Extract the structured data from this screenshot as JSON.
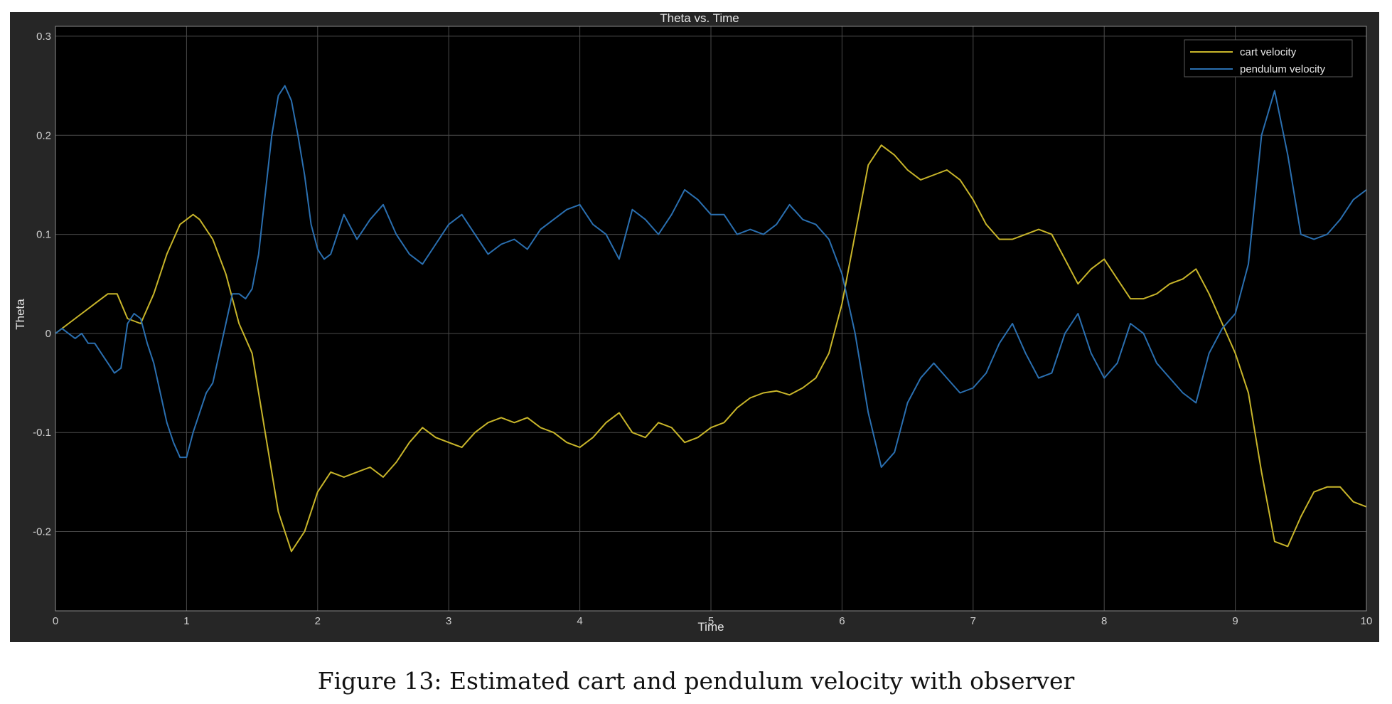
{
  "caption": "Figure 13: Estimated cart and pendulum velocity with observer",
  "chart_data": {
    "type": "line",
    "title": "Theta vs. Time",
    "xlabel": "Time",
    "ylabel": "Theta",
    "xlim": [
      0,
      10
    ],
    "ylim": [
      -0.28,
      0.31
    ],
    "xticks": [
      0,
      1,
      2,
      3,
      4,
      5,
      6,
      7,
      8,
      9,
      10
    ],
    "yticks": [
      -0.2,
      -0.1,
      0,
      0.1,
      0.2,
      0.3
    ],
    "ytick_labels": [
      "-0.2",
      "-0.1",
      "0",
      "0.1",
      "0.2",
      "0.3"
    ],
    "grid": true,
    "legend_position": "top-right",
    "background": "#000000",
    "series": [
      {
        "name": "cart velocity",
        "color": "#c8b52a",
        "x": [
          0,
          0.1,
          0.2,
          0.3,
          0.4,
          0.47,
          0.55,
          0.65,
          0.75,
          0.85,
          0.95,
          1.05,
          1.1,
          1.2,
          1.3,
          1.4,
          1.5,
          1.6,
          1.7,
          1.8,
          1.9,
          2.0,
          2.1,
          2.2,
          2.3,
          2.4,
          2.5,
          2.6,
          2.7,
          2.8,
          2.9,
          3.0,
          3.1,
          3.2,
          3.3,
          3.4,
          3.5,
          3.6,
          3.7,
          3.8,
          3.9,
          4.0,
          4.1,
          4.2,
          4.3,
          4.4,
          4.5,
          4.6,
          4.7,
          4.8,
          4.9,
          5.0,
          5.1,
          5.2,
          5.3,
          5.4,
          5.5,
          5.6,
          5.7,
          5.8,
          5.9,
          6.0,
          6.1,
          6.2,
          6.3,
          6.4,
          6.5,
          6.6,
          6.7,
          6.8,
          6.9,
          7.0,
          7.1,
          7.2,
          7.3,
          7.4,
          7.5,
          7.6,
          7.7,
          7.8,
          7.9,
          8.0,
          8.1,
          8.2,
          8.3,
          8.4,
          8.5,
          8.6,
          8.7,
          8.8,
          8.9,
          9.0,
          9.1,
          9.2,
          9.3,
          9.4,
          9.5,
          9.6,
          9.7,
          9.8,
          9.9,
          10.0
        ],
        "y": [
          0.0,
          0.01,
          0.02,
          0.03,
          0.04,
          0.04,
          0.015,
          0.01,
          0.04,
          0.08,
          0.11,
          0.12,
          0.115,
          0.095,
          0.06,
          0.01,
          -0.02,
          -0.1,
          -0.18,
          -0.22,
          -0.2,
          -0.16,
          -0.14,
          -0.145,
          -0.14,
          -0.135,
          -0.145,
          -0.13,
          -0.11,
          -0.095,
          -0.105,
          -0.11,
          -0.115,
          -0.1,
          -0.09,
          -0.085,
          -0.09,
          -0.085,
          -0.095,
          -0.1,
          -0.11,
          -0.115,
          -0.105,
          -0.09,
          -0.08,
          -0.1,
          -0.105,
          -0.09,
          -0.095,
          -0.11,
          -0.105,
          -0.095,
          -0.09,
          -0.075,
          -0.065,
          -0.06,
          -0.058,
          -0.062,
          -0.055,
          -0.045,
          -0.02,
          0.03,
          0.1,
          0.17,
          0.19,
          0.18,
          0.165,
          0.155,
          0.16,
          0.165,
          0.155,
          0.135,
          0.11,
          0.095,
          0.095,
          0.1,
          0.105,
          0.1,
          0.075,
          0.05,
          0.065,
          0.075,
          0.055,
          0.035,
          0.035,
          0.04,
          0.05,
          0.055,
          0.065,
          0.04,
          0.01,
          -0.02,
          -0.06,
          -0.14,
          -0.21,
          -0.215,
          -0.185,
          -0.16,
          -0.155,
          -0.155,
          -0.17,
          -0.175
        ]
      },
      {
        "name": "pendulum velocity",
        "color": "#2a6fb0",
        "x": [
          0,
          0.05,
          0.1,
          0.15,
          0.2,
          0.25,
          0.3,
          0.35,
          0.4,
          0.45,
          0.5,
          0.55,
          0.6,
          0.65,
          0.7,
          0.75,
          0.8,
          0.85,
          0.9,
          0.95,
          1.0,
          1.05,
          1.1,
          1.15,
          1.2,
          1.3,
          1.35,
          1.4,
          1.45,
          1.5,
          1.55,
          1.6,
          1.65,
          1.7,
          1.75,
          1.8,
          1.85,
          1.9,
          1.95,
          2.0,
          2.05,
          2.1,
          2.15,
          2.2,
          2.3,
          2.4,
          2.5,
          2.6,
          2.7,
          2.8,
          2.9,
          3.0,
          3.1,
          3.2,
          3.3,
          3.4,
          3.5,
          3.6,
          3.7,
          3.8,
          3.9,
          4.0,
          4.1,
          4.2,
          4.3,
          4.4,
          4.5,
          4.6,
          4.7,
          4.8,
          4.9,
          5.0,
          5.1,
          5.2,
          5.3,
          5.4,
          5.5,
          5.6,
          5.7,
          5.8,
          5.9,
          6.0,
          6.1,
          6.2,
          6.3,
          6.4,
          6.5,
          6.6,
          6.7,
          6.8,
          6.9,
          7.0,
          7.1,
          7.2,
          7.3,
          7.4,
          7.5,
          7.6,
          7.7,
          7.8,
          7.9,
          8.0,
          8.1,
          8.2,
          8.3,
          8.4,
          8.5,
          8.6,
          8.7,
          8.8,
          8.9,
          9.0,
          9.1,
          9.2,
          9.3,
          9.4,
          9.5,
          9.6,
          9.7,
          9.8,
          9.9,
          10.0
        ],
        "y": [
          0.0,
          0.005,
          0.0,
          -0.005,
          0.0,
          -0.01,
          -0.01,
          -0.02,
          -0.03,
          -0.04,
          -0.035,
          0.01,
          0.02,
          0.015,
          -0.01,
          -0.03,
          -0.06,
          -0.09,
          -0.11,
          -0.125,
          -0.125,
          -0.1,
          -0.08,
          -0.06,
          -0.05,
          0.01,
          0.04,
          0.04,
          0.035,
          0.045,
          0.08,
          0.14,
          0.2,
          0.24,
          0.25,
          0.235,
          0.2,
          0.16,
          0.11,
          0.085,
          0.075,
          0.08,
          0.1,
          0.12,
          0.095,
          0.115,
          0.13,
          0.1,
          0.08,
          0.07,
          0.09,
          0.11,
          0.12,
          0.1,
          0.08,
          0.09,
          0.095,
          0.085,
          0.105,
          0.115,
          0.125,
          0.13,
          0.11,
          0.1,
          0.075,
          0.125,
          0.115,
          0.1,
          0.12,
          0.145,
          0.135,
          0.12,
          0.12,
          0.1,
          0.105,
          0.1,
          0.11,
          0.13,
          0.115,
          0.11,
          0.095,
          0.06,
          0.0,
          -0.08,
          -0.135,
          -0.12,
          -0.07,
          -0.045,
          -0.03,
          -0.045,
          -0.06,
          -0.055,
          -0.04,
          -0.01,
          0.01,
          -0.02,
          -0.045,
          -0.04,
          0.0,
          0.02,
          -0.02,
          -0.045,
          -0.03,
          0.01,
          0.0,
          -0.03,
          -0.045,
          -0.06,
          -0.07,
          -0.02,
          0.005,
          0.02,
          0.07,
          0.2,
          0.245,
          0.18,
          0.1,
          0.095,
          0.1,
          0.115,
          0.135,
          0.145
        ]
      }
    ]
  }
}
